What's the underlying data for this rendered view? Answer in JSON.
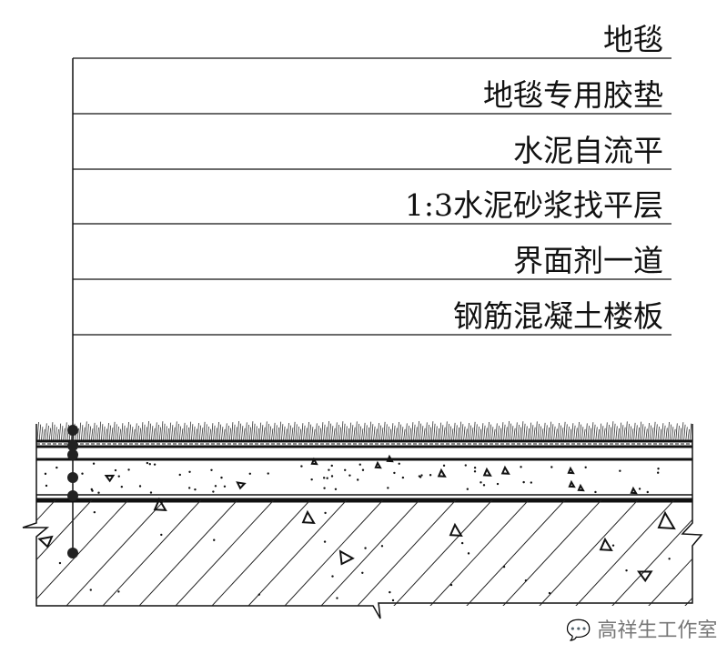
{
  "labels": [
    "地毯",
    "地毯专用胶垫",
    "水泥自流平",
    "1:3水泥砂浆找平层",
    "界面剂一道",
    "钢筋混凝土楼板"
  ],
  "watermark": {
    "icon": "wechat-icon",
    "text": "高祥生工作室"
  }
}
